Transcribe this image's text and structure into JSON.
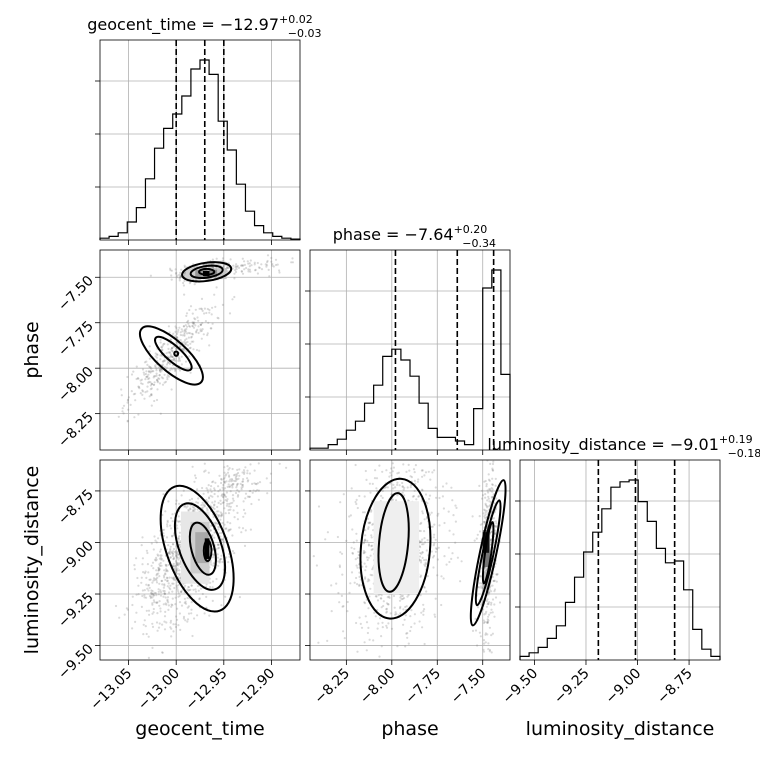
{
  "chart_data": {
    "type": "corner",
    "parameters": [
      "geocent_time",
      "phase",
      "luminosity_distance"
    ],
    "titles": {
      "geocent_time": {
        "lhs": "geocent_time = −12.97",
        "plus": "+0.02",
        "minus": "−0.03"
      },
      "phase": {
        "lhs": "phase = −7.64",
        "plus": "+0.20",
        "minus": "−0.34"
      },
      "luminosity_distance": {
        "lhs": "luminosity_distance = −9.01",
        "plus": "+0.19",
        "minus": "−0.18"
      }
    },
    "ranges": {
      "geocent_time": [
        -13.08,
        -12.87
      ],
      "phase": [
        -8.45,
        -7.35
      ],
      "luminosity_distance": [
        -9.57,
        -8.6
      ]
    },
    "ticks": {
      "geocent_time": [
        -13.05,
        -13.0,
        -12.95,
        -12.9
      ],
      "phase": [
        -8.25,
        -8.0,
        -7.75,
        -7.5
      ],
      "luminosity_distance": [
        -9.5,
        -9.25,
        -9.0,
        -8.75
      ]
    },
    "tick_labels": {
      "geocent_time": [
        "−13.05",
        "−13.00",
        "−12.95",
        "−12.90"
      ],
      "phase": [
        "−8.25",
        "−8.00",
        "−7.75",
        "−7.50"
      ],
      "luminosity_distance": [
        "−9.50",
        "−9.25",
        "−9.00",
        "−8.75"
      ]
    },
    "quantiles": {
      "geocent_time": [
        -13.0,
        -12.97,
        -12.95
      ],
      "phase": [
        -7.98,
        -7.64,
        -7.44
      ],
      "luminosity_distance": [
        -9.19,
        -9.01,
        -8.82
      ]
    },
    "histograms": {
      "geocent_time": [
        1,
        2,
        4,
        10,
        18,
        34,
        51,
        62,
        70,
        80,
        95,
        100,
        92,
        66,
        50,
        31,
        16,
        8,
        4,
        2,
        1,
        0.5
      ],
      "phase": [
        1,
        1,
        3,
        6,
        11,
        16,
        26,
        36,
        52,
        56,
        50,
        41,
        26,
        12,
        7,
        7,
        5,
        3,
        23,
        90,
        100,
        42
      ],
      "luminosity_distance": [
        2,
        4,
        7,
        12,
        19,
        32,
        46,
        60,
        71,
        84,
        96,
        99,
        100,
        88,
        77,
        62,
        54,
        55,
        39,
        17,
        6,
        2
      ]
    }
  }
}
